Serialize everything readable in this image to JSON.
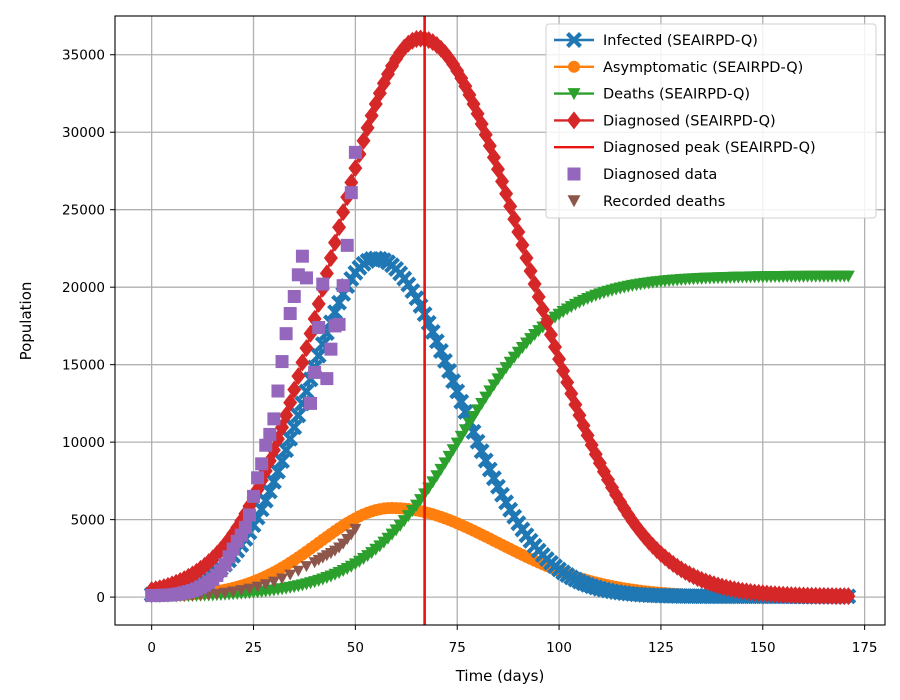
{
  "chart_data": {
    "type": "line",
    "xlabel": "Time (days)",
    "ylabel": "Population",
    "xlim": [
      -9,
      180
    ],
    "ylim": [
      -1800,
      37500
    ],
    "xticks": [
      0,
      25,
      50,
      75,
      100,
      125,
      150,
      175
    ],
    "yticks": [
      0,
      5000,
      10000,
      15000,
      20000,
      25000,
      30000,
      35000
    ],
    "grid": true,
    "legend_position": "top-right",
    "model_series": [
      {
        "name": "Infected (SEAIRPD-Q)",
        "color": "#1f77b4",
        "marker": "x-cross",
        "curve": "gauss",
        "peak": 21800,
        "center": 55,
        "width_left": 17,
        "width_right": 20
      },
      {
        "name": "Asymptomatic (SEAIRPD-Q)",
        "color": "#ff7f0e",
        "marker": "circle",
        "curve": "gauss",
        "peak": 5700,
        "center": 59,
        "width_left": 18,
        "width_right": 26
      },
      {
        "name": "Deaths (SEAIRPD-Q)",
        "color": "#2ca02c",
        "marker": "triangle-down",
        "curve": "logistic",
        "top": 20700,
        "midpoint": 76,
        "scale": 12
      },
      {
        "name": "Diagnosed (SEAIRPD-Q)",
        "color": "#d62728",
        "marker": "diamond",
        "curve": "gauss",
        "peak": 36000,
        "center": 66,
        "width_left": 22,
        "width_right": 26
      }
    ],
    "peak_line": {
      "name": "Diagnosed peak (SEAIRPD-Q)",
      "x": 67,
      "color": "#e8140f"
    },
    "diagnosed_data": {
      "name": "Diagnosed data",
      "color": "#9467bd",
      "x": [
        0,
        1,
        2,
        3,
        4,
        5,
        6,
        7,
        8,
        9,
        10,
        11,
        12,
        13,
        14,
        15,
        16,
        17,
        18,
        19,
        20,
        21,
        22,
        23,
        24,
        25,
        26,
        27,
        28,
        29,
        30,
        31,
        32,
        33,
        34,
        35,
        36,
        37,
        38,
        39,
        40,
        41,
        42,
        43,
        44,
        45,
        46,
        47,
        48,
        49,
        50,
        51
      ],
      "y": [
        100,
        100,
        110,
        120,
        130,
        150,
        180,
        220,
        280,
        350,
        420,
        520,
        640,
        780,
        950,
        1150,
        1400,
        1700,
        2100,
        2600,
        3100,
        3600,
        4000,
        4500,
        5300,
        6500,
        7700,
        8600,
        9800,
        10500,
        11500,
        13300,
        15200,
        17000,
        18300,
        19400,
        20800,
        22000,
        20600,
        12500,
        14500,
        17400,
        20200,
        14100,
        16000,
        17500,
        17600,
        20100,
        22700,
        26100,
        28700,
        null
      ]
    },
    "recorded_deaths": {
      "name": "Recorded deaths",
      "color": "#8c564b",
      "x": [
        0,
        2,
        4,
        6,
        8,
        10,
        12,
        14,
        16,
        18,
        20,
        22,
        24,
        26,
        28,
        30,
        32,
        34,
        36,
        38,
        40,
        41,
        42,
        43,
        44,
        45,
        46,
        47,
        48,
        49,
        50
      ],
      "y": [
        0,
        10,
        20,
        40,
        60,
        90,
        120,
        160,
        210,
        280,
        360,
        450,
        550,
        680,
        830,
        1000,
        1200,
        1450,
        1700,
        2000,
        2250,
        2400,
        2550,
        2700,
        2850,
        3000,
        3200,
        3450,
        3750,
        4050,
        4400
      ]
    }
  }
}
